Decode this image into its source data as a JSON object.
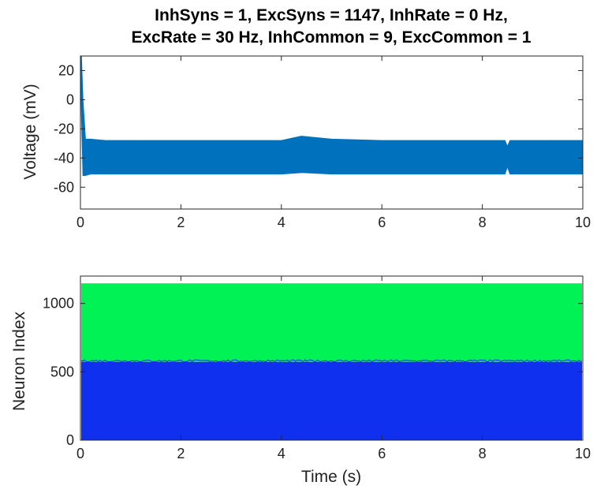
{
  "title": {
    "line1": "InhSyns = 1, ExcSyns = 1147, InhRate = 0 Hz,",
    "line2": "ExcRate = 30 Hz, InhCommon = 9, ExcCommon = 1"
  },
  "chart_data": [
    {
      "type": "line",
      "xlabel": "",
      "ylabel": "Voltage (mV)",
      "xlim": [
        0,
        10
      ],
      "ylim": [
        -75,
        30
      ],
      "xticks": [
        0,
        2,
        4,
        6,
        8,
        10
      ],
      "yticks": [
        20,
        0,
        -20,
        -40,
        -60
      ],
      "series": [
        {
          "color": "#0072BD",
          "x": [
            0,
            0.02,
            0.05,
            0.1,
            0.2,
            0.5,
            1,
            2,
            3,
            4,
            4.4,
            5,
            6,
            7,
            8,
            8.45,
            8.5,
            8.55,
            9,
            10
          ],
          "y": [
            30,
            0,
            -30,
            -40,
            -38,
            -39,
            -38,
            -39,
            -38,
            -39,
            -37,
            -38,
            -39,
            -38,
            -39,
            -38,
            -40,
            -38,
            -39,
            -38
          ],
          "envelope_upper": [
            30,
            30,
            0,
            -27,
            -27,
            -28,
            -28,
            -28,
            -28,
            -28,
            -25,
            -27,
            -28,
            -28,
            -28,
            -28,
            -32,
            -28,
            -28,
            -28
          ],
          "envelope_lower": [
            30,
            -10,
            -52,
            -52,
            -51,
            -51,
            -51,
            -51,
            -51,
            -51,
            -50,
            -51,
            -51,
            -51,
            -51,
            -51,
            -46,
            -51,
            -51,
            -51
          ]
        }
      ],
      "grid": false
    },
    {
      "type": "scatter",
      "xlabel": "Time (s)",
      "ylabel": "Neuron Index",
      "xlim": [
        0,
        10
      ],
      "ylim": [
        0,
        1200
      ],
      "xticks": [
        0,
        2,
        4,
        6,
        8,
        10
      ],
      "yticks": [
        0,
        500,
        1000
      ],
      "series": [
        {
          "color": "#1030F0",
          "index_range": [
            0,
            573
          ]
        },
        {
          "color": "#00F255",
          "index_range": [
            574,
            1147
          ]
        }
      ],
      "grid": false
    }
  ]
}
